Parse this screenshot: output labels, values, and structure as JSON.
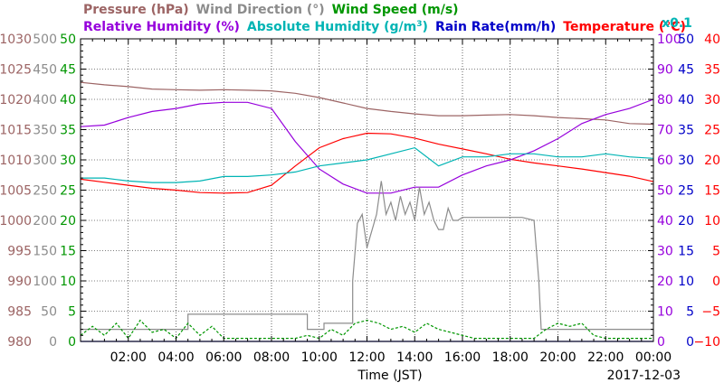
{
  "chart_data": {
    "type": "line",
    "date": "2017-12-03",
    "xlabel": "Time (JST)",
    "x_ticks": [
      "02:00",
      "04:00",
      "06:00",
      "08:00",
      "10:00",
      "12:00",
      "14:00",
      "16:00",
      "18:00",
      "20:00",
      "22:00",
      "00:00"
    ],
    "x_range_hours": [
      0,
      24
    ],
    "legend_row1": [
      {
        "text": "Pressure (hPa)",
        "color": "#9c6464"
      },
      {
        "text": "Wind Direction (°)",
        "color": "#8c8c8c"
      },
      {
        "text": "Wind Speed (m/s)",
        "color": "#009600"
      }
    ],
    "legend_row2": [
      {
        "text": "Relative Humidity (%)",
        "color": "#9600dc"
      },
      {
        "text": "Absolute Humidity (g/m",
        "sup": "3",
        "tail": ")",
        "color": "#00b4b4"
      },
      {
        "text": "Rain Rate(mm/h)",
        "color": "#0000c8"
      },
      {
        "text": "Temperature (°C)",
        "color": "#ff0000"
      }
    ],
    "scale_note": "x0.1",
    "axes": {
      "pressure": {
        "color": "#9c6464",
        "range": [
          980,
          1030
        ],
        "ticks": [
          "980",
          "985",
          "990",
          "995",
          "1000",
          "1005",
          "1010",
          "1015",
          "1020",
          "1025",
          "1030"
        ]
      },
      "wind_direction": {
        "color": "#8c8c8c",
        "range": [
          0,
          500
        ],
        "ticks": [
          "0",
          "50",
          "100",
          "150",
          "200",
          "250",
          "300",
          "350",
          "400",
          "450",
          "500"
        ]
      },
      "wind_speed": {
        "color": "#009600",
        "range": [
          0,
          50
        ],
        "ticks": [
          "0",
          "5",
          "10",
          "15",
          "20",
          "25",
          "30",
          "35",
          "40",
          "45",
          "50"
        ]
      },
      "humidity": {
        "color": "#9600dc",
        "range": [
          0,
          100
        ],
        "ticks": [
          "0",
          "10",
          "20",
          "30",
          "40",
          "50",
          "60",
          "70",
          "80",
          "90",
          "100"
        ]
      },
      "rain_rate": {
        "color": "#0000c8",
        "range": [
          0,
          50
        ],
        "ticks": [
          "0",
          "5",
          "10",
          "15",
          "20",
          "25",
          "30",
          "35",
          "40",
          "45",
          "50"
        ]
      },
      "temperature": {
        "color": "#ff0000",
        "range": [
          -10,
          40
        ],
        "ticks": [
          "−10",
          "−5",
          "0",
          "5",
          "10",
          "15",
          "20",
          "25",
          "30",
          "35",
          "40"
        ]
      }
    },
    "series": [
      {
        "name": "Pressure (hPa)",
        "axis": "pressure",
        "color": "#9c6464",
        "x": [
          0,
          1,
          2,
          3,
          4,
          5,
          6,
          7,
          8,
          9,
          10,
          11,
          12,
          13,
          14,
          15,
          16,
          17,
          18,
          19,
          20,
          21,
          22,
          23,
          24
        ],
        "y": [
          1022.8,
          1022.4,
          1022.1,
          1021.7,
          1021.6,
          1021.5,
          1021.6,
          1021.5,
          1021.4,
          1021.0,
          1020.3,
          1019.4,
          1018.5,
          1018.0,
          1017.6,
          1017.3,
          1017.3,
          1017.4,
          1017.5,
          1017.3,
          1017.0,
          1016.8,
          1016.6,
          1016.0,
          1015.9
        ]
      },
      {
        "name": "Temperature (°C)",
        "axis": "temperature",
        "color": "#ff0000",
        "x": [
          0,
          1,
          2,
          3,
          4,
          5,
          6,
          7,
          8,
          9,
          10,
          11,
          12,
          13,
          14,
          15,
          16,
          17,
          18,
          19,
          20,
          21,
          22,
          23,
          24
        ],
        "y": [
          16.8,
          16.3,
          15.8,
          15.3,
          15.0,
          14.6,
          14.5,
          14.6,
          15.8,
          19.0,
          22.0,
          23.5,
          24.4,
          24.3,
          23.6,
          22.6,
          21.8,
          21.0,
          20.1,
          19.5,
          19.0,
          18.5,
          17.9,
          17.3,
          16.4
        ]
      },
      {
        "name": "Relative Humidity (%)",
        "axis": "humidity",
        "color": "#9600dc",
        "x": [
          0,
          1,
          2,
          3,
          4,
          5,
          6,
          7,
          8,
          9,
          10,
          11,
          12,
          13,
          14,
          15,
          16,
          17,
          18,
          19,
          20,
          21,
          22,
          23,
          24
        ],
        "y": [
          71,
          71.5,
          74,
          76,
          77,
          78.5,
          79,
          79,
          77,
          66,
          57,
          52,
          49,
          49,
          51,
          51,
          55,
          58,
          60,
          63,
          67,
          72,
          75,
          77,
          80
        ]
      },
      {
        "name": "Absolute Humidity (g/m3 x0.1)",
        "axis": "humidity",
        "color": "#00b4b4",
        "x": [
          0,
          1,
          2,
          3,
          4,
          5,
          6,
          7,
          8,
          9,
          10,
          11,
          12,
          13,
          14,
          15,
          16,
          17,
          18,
          19,
          20,
          21,
          22,
          23,
          24
        ],
        "y": [
          54,
          54,
          53,
          52.5,
          52.5,
          53,
          54.5,
          54.5,
          55,
          56,
          58,
          59,
          60,
          62,
          64,
          58,
          61,
          61,
          62,
          62,
          61,
          61,
          62,
          61,
          60.5
        ]
      },
      {
        "name": "Wind Direction (°)",
        "axis": "wind_direction",
        "color": "#8c8c8c",
        "x": [
          0,
          0.5,
          0.5,
          4.5,
          4.5,
          9.5,
          9.5,
          10.2,
          10.2,
          11.4,
          11.4,
          11.6,
          11.8,
          12.0,
          12.4,
          12.6,
          12.8,
          13.0,
          13.2,
          13.4,
          13.6,
          13.8,
          14.0,
          14.2,
          14.4,
          14.6,
          14.8,
          15.0,
          15.2,
          15.4,
          15.6,
          15.8,
          16.0,
          16.5,
          17.0,
          17.5,
          18.0,
          18.5,
          19.0,
          19.2,
          19.3,
          19.5,
          20.0,
          20.5,
          21.0,
          21.5,
          22.0,
          22.5,
          23.0,
          23.5,
          24.0
        ],
        "y": [
          20,
          20,
          20,
          20,
          45,
          45,
          20,
          20,
          30,
          30,
          100,
          195,
          210,
          155,
          210,
          265,
          210,
          230,
          200,
          240,
          210,
          230,
          200,
          255,
          210,
          230,
          200,
          185,
          185,
          220,
          200,
          200,
          205,
          205,
          205,
          205,
          205,
          205,
          200,
          100,
          20,
          20,
          20,
          20,
          20,
          20,
          20,
          20,
          20,
          20,
          20
        ]
      },
      {
        "name": "Wind Speed (m/s)",
        "axis": "wind_speed",
        "color": "#009600",
        "x": [
          0,
          0.5,
          1,
          1.5,
          2,
          2.5,
          3,
          3.5,
          4,
          4.5,
          5,
          5.5,
          6,
          6.5,
          7,
          7.5,
          8,
          8.5,
          9,
          9.5,
          10,
          10.5,
          11,
          11.5,
          12,
          12.5,
          13,
          13.5,
          14,
          14.5,
          15,
          15.5,
          16,
          16.5,
          17,
          17.5,
          18,
          18.5,
          19,
          19.5,
          20,
          20.5,
          21,
          21.5,
          22,
          22.5,
          23,
          23.5,
          24
        ],
        "y": [
          1,
          2.5,
          1,
          3,
          0.5,
          3.5,
          1.5,
          2,
          0.5,
          3,
          1,
          2.5,
          0.5,
          0.5,
          0.5,
          0.5,
          0.5,
          0.5,
          0.5,
          1,
          0.5,
          2,
          1,
          3,
          3.5,
          3,
          2,
          2.5,
          1.5,
          3,
          2,
          1.5,
          1,
          0.5,
          0.5,
          0.5,
          0.5,
          0.5,
          0.5,
          2,
          3,
          2.5,
          3,
          1,
          0.5,
          0.5,
          0.5,
          0.5,
          0.5
        ]
      },
      {
        "name": "Rain Rate(mm/h)",
        "axis": "rain_rate",
        "color": "#0000c8",
        "x": [
          0,
          24
        ],
        "y": [
          0,
          0
        ]
      }
    ]
  }
}
